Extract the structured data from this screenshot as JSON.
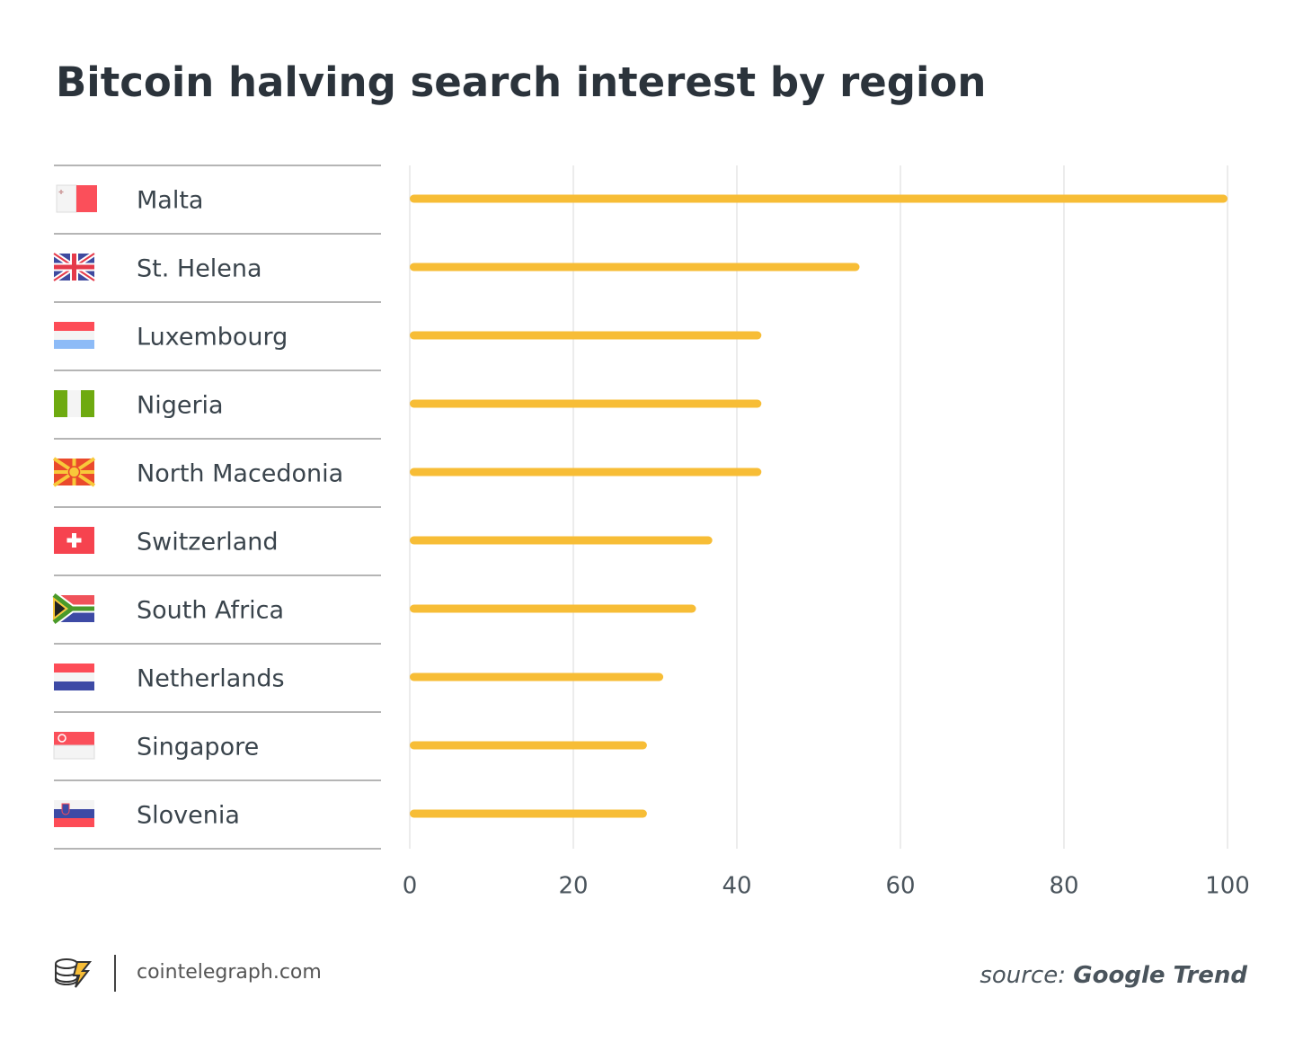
{
  "chart_data": {
    "type": "barh",
    "title": "Bitcoin halving search interest by region",
    "categories": [
      "Malta",
      "St. Helena",
      "Luxembourg",
      "Nigeria",
      "North Macedonia",
      "Switzerland",
      "South Africa",
      "Netherlands",
      "Singapore",
      "Slovenia"
    ],
    "values": [
      100,
      55,
      43,
      43,
      43,
      37,
      35,
      31,
      29,
      29
    ],
    "color": "#f7bd36",
    "xlim": [
      0,
      100
    ],
    "xticks": [
      0,
      20,
      40,
      60,
      80,
      100
    ],
    "grid": true,
    "brand": "cointelegraph.com",
    "source_label": "source:",
    "source": "Google Trend"
  }
}
